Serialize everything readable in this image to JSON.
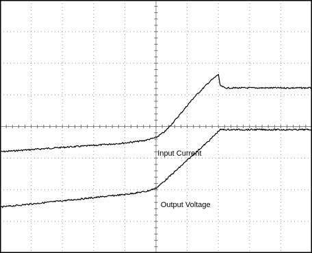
{
  "chart_data": {
    "type": "line",
    "title": "",
    "xlabel": "",
    "ylabel": "",
    "xlim": [
      0,
      10
    ],
    "ylim": [
      0,
      8
    ],
    "grid": true,
    "grid_divisions": {
      "x": 10,
      "y": 8
    },
    "series": [
      {
        "name": "Input Current",
        "color": "#000000",
        "x": [
          0,
          1,
          2,
          3,
          4,
          4.6,
          5,
          5.3,
          5.7,
          6.2,
          6.7,
          7.0,
          7.05,
          7.2,
          8,
          9,
          10
        ],
        "y": [
          3.2,
          3.27,
          3.34,
          3.4,
          3.48,
          3.55,
          3.65,
          3.85,
          4.3,
          4.9,
          5.4,
          5.65,
          5.3,
          5.22,
          5.22,
          5.22,
          5.22
        ]
      },
      {
        "name": "Output Voltage",
        "color": "#000000",
        "x": [
          0,
          1,
          2,
          3,
          4,
          4.7,
          5.0,
          5.3,
          5.8,
          6.3,
          6.7,
          7.05,
          8,
          9,
          10
        ],
        "y": [
          1.45,
          1.55,
          1.65,
          1.75,
          1.85,
          1.95,
          2.05,
          2.3,
          2.75,
          3.2,
          3.55,
          3.9,
          3.9,
          3.9,
          3.9
        ]
      }
    ],
    "annotations": [
      {
        "text": "Input Current",
        "x": 5.05,
        "y": 3.08
      },
      {
        "text": "Output Voltage",
        "x": 5.15,
        "y": 1.45
      }
    ]
  }
}
